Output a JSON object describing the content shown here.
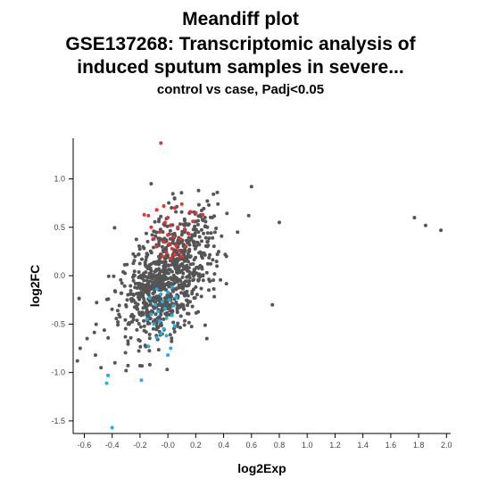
{
  "chart_data": {
    "type": "scatter",
    "title_lines": [
      "Meandiff plot",
      "GSE137268: Transcriptomic analysis of",
      "induced sputum samples in severe...",
      "control vs case, Padj<0.05"
    ],
    "xlabel": "log2Exp",
    "ylabel": "log2FC",
    "xlim": [
      -0.68,
      2.03
    ],
    "ylim": [
      -1.63,
      1.42
    ],
    "x_ticks": [
      -0.6,
      -0.4,
      -0.2,
      0.0,
      0.2,
      0.4,
      0.6,
      0.8,
      1.0,
      1.2,
      1.4,
      1.6,
      1.8,
      2.0
    ],
    "x_tick_labels": [
      "-0.6",
      "-0.4",
      "-0.2",
      "-0.0",
      "0.2",
      "0.4",
      "0.6",
      "0.8",
      "1.0",
      "1.2",
      "1.4",
      "1.6",
      "1.8",
      "2.0"
    ],
    "y_ticks": [
      -1.5,
      -1.0,
      -0.5,
      0.0,
      0.5,
      1.0
    ],
    "y_tick_labels": [
      "-1.5",
      "-1.0",
      "-0.5",
      "0.0",
      "0.5",
      "1.0"
    ],
    "grid": false,
    "legend": "none",
    "colors": {
      "not_significant": "#555555",
      "up": "#e8302f",
      "down": "#1ab0e8"
    },
    "series": [
      {
        "color_key": "up",
        "points": [
          [
            -0.05,
            1.37
          ],
          [
            -0.17,
            0.63
          ],
          [
            -0.14,
            0.62
          ],
          [
            -0.08,
            0.68
          ],
          [
            -0.03,
            0.72
          ],
          [
            0.05,
            0.7
          ],
          [
            0.1,
            0.74
          ],
          [
            0.16,
            0.66
          ],
          [
            0.2,
            0.65
          ],
          [
            0.25,
            0.63
          ],
          [
            -0.02,
            0.55
          ],
          [
            0.02,
            0.52
          ],
          [
            0.07,
            0.5
          ],
          [
            0.12,
            0.48
          ],
          [
            -0.06,
            0.45
          ],
          [
            0.0,
            0.42
          ],
          [
            0.04,
            0.4
          ],
          [
            0.09,
            0.38
          ],
          [
            -0.03,
            0.35
          ],
          [
            0.01,
            0.33
          ],
          [
            0.06,
            0.31
          ],
          [
            -0.08,
            0.3
          ],
          [
            0.03,
            0.28
          ],
          [
            0.08,
            0.26
          ],
          [
            -0.01,
            0.24
          ],
          [
            0.05,
            0.22
          ],
          [
            -0.04,
            0.2
          ],
          [
            0.02,
            0.18
          ],
          [
            0.1,
            0.2
          ],
          [
            0.13,
            0.3
          ],
          [
            -0.1,
            0.38
          ],
          [
            0.15,
            0.43
          ],
          [
            0.0,
            0.6
          ],
          [
            0.18,
            0.56
          ],
          [
            -0.12,
            0.5
          ]
        ]
      },
      {
        "color_key": "down",
        "points": [
          [
            -0.4,
            -1.57
          ],
          [
            -0.43,
            -1.03
          ],
          [
            -0.44,
            -1.11
          ],
          [
            -0.19,
            -1.08
          ],
          [
            -0.14,
            -0.73
          ],
          [
            -0.08,
            -0.64
          ],
          [
            -0.05,
            -0.6
          ],
          [
            0.0,
            -0.82
          ],
          [
            0.02,
            -0.75
          ],
          [
            -0.03,
            -0.55
          ],
          [
            -0.1,
            -0.5
          ],
          [
            -0.06,
            -0.47
          ],
          [
            -0.01,
            -0.44
          ],
          [
            0.03,
            -0.41
          ],
          [
            -0.12,
            -0.4
          ],
          [
            -0.07,
            -0.37
          ],
          [
            -0.02,
            -0.34
          ],
          [
            0.04,
            -0.31
          ],
          [
            -0.09,
            -0.3
          ],
          [
            -0.04,
            -0.27
          ],
          [
            0.01,
            -0.25
          ],
          [
            0.06,
            -0.22
          ],
          [
            -0.13,
            -0.23
          ],
          [
            -0.05,
            -0.19
          ],
          [
            0.0,
            -0.17
          ],
          [
            -0.08,
            -0.14
          ],
          [
            0.03,
            -0.12
          ],
          [
            -0.15,
            -0.45
          ],
          [
            -0.01,
            -0.62
          ],
          [
            0.05,
            -0.52
          ]
        ]
      },
      {
        "color_key": "not_significant",
        "seed": 137268,
        "count": 900,
        "points": [
          [
            1.77,
            0.6
          ],
          [
            1.85,
            0.52
          ],
          [
            1.96,
            0.47
          ],
          [
            0.8,
            0.55
          ],
          [
            0.75,
            -0.3
          ],
          [
            0.6,
            0.92
          ],
          [
            0.58,
            0.62
          ],
          [
            0.5,
            0.45
          ],
          [
            0.42,
            0.2
          ],
          [
            0.28,
            -0.65
          ],
          [
            -0.65,
            -0.88
          ],
          [
            -0.63,
            -0.75
          ],
          [
            -0.58,
            -0.65
          ],
          [
            -0.52,
            -0.82
          ],
          [
            -0.48,
            -0.95
          ],
          [
            -0.38,
            -0.9
          ],
          [
            -0.3,
            -0.98
          ],
          [
            -0.2,
            -0.93
          ],
          [
            -0.12,
            0.95
          ],
          [
            0.22,
            0.88
          ]
        ]
      }
    ]
  }
}
